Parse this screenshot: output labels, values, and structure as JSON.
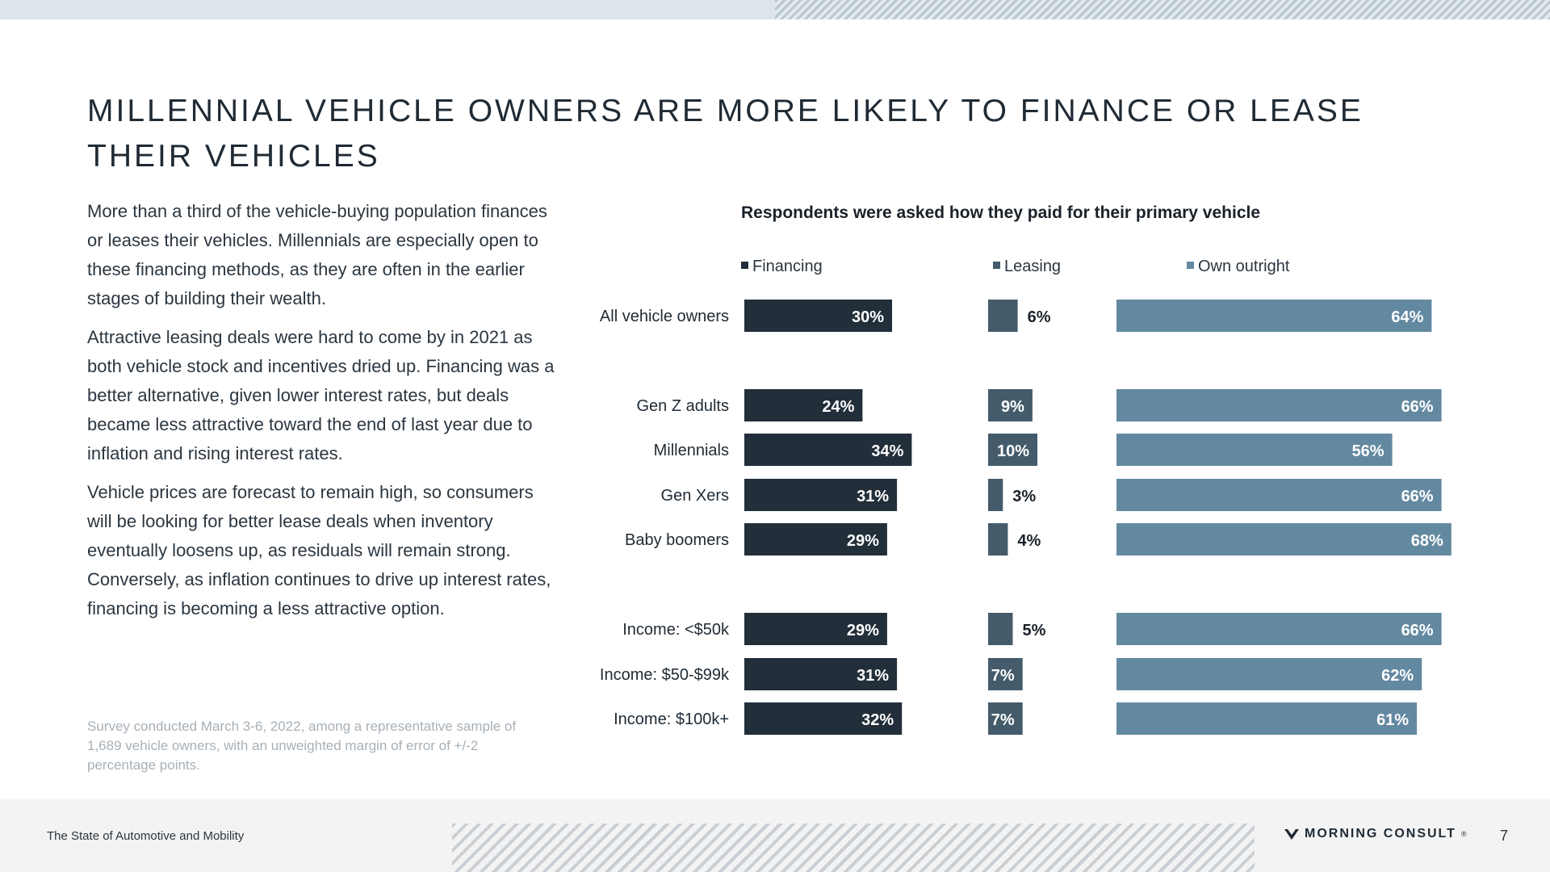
{
  "page": {
    "title": "MILLENNIAL VEHICLE OWNERS ARE MORE LIKELY TO FINANCE OR LEASE THEIR VEHICLES",
    "paragraphs": [
      "More than a third of the vehicle-buying population finances or leases their vehicles. Millennials are especially open to these financing methods, as they are often in the earlier stages of building their wealth.",
      "Attractive leasing deals were hard to come by in 2021 as both vehicle stock and incentives dried up. Financing was a better alternative, given lower interest rates, but deals became less attractive toward the end of last year due to inflation and rising interest rates.",
      "Vehicle prices are forecast to remain high, so consumers will be looking for better lease deals when inventory eventually loosens up, as residuals will remain strong. Conversely, as inflation continues to drive up interest rates, financing is becoming a less attractive option."
    ],
    "footnote": "Survey conducted March 3-6, 2022, among a representative sample of 1,689 vehicle owners, with an unweighted margin of error of +/-2 percentage points.",
    "footer_left": "The State of Automotive and Mobility",
    "brand": "MORNING CONSULT",
    "brand_mark": "®",
    "page_number": "7"
  },
  "colors": {
    "financing": "#222e39",
    "leasing": "#445b6b",
    "own_outright": "#6389a1",
    "label_light": "#ffffff",
    "label_dark": "#1a2129"
  },
  "chart_data": {
    "type": "bar",
    "orientation": "horizontal",
    "title": "Respondents were asked how they paid for their primary vehicle",
    "categories": [
      "All vehicle owners",
      "Gen Z adults",
      "Millennials",
      "Gen Xers",
      "Baby boomers",
      "Income: <$50k",
      "Income: $50-$99k",
      "Income: $100k+"
    ],
    "groups": [
      [
        "All vehicle owners"
      ],
      [
        "Gen Z adults",
        "Millennials",
        "Gen Xers",
        "Baby boomers"
      ],
      [
        "Income: <$50k",
        "Income: $50-$99k",
        "Income: $100k+"
      ]
    ],
    "series": [
      {
        "name": "Financing",
        "values": [
          30,
          24,
          34,
          31,
          29,
          29,
          31,
          32
        ],
        "labels": [
          "30%",
          "24%",
          "34%",
          "31%",
          "29%",
          "29%",
          "31%",
          "32%"
        ]
      },
      {
        "name": "Leasing",
        "values": [
          6,
          9,
          10,
          3,
          4,
          5,
          7,
          7
        ],
        "labels": [
          "6%",
          "9%",
          "10%",
          "3%",
          "4%",
          "5%",
          "7%",
          "7%"
        ]
      },
      {
        "name": "Own outright",
        "values": [
          64,
          66,
          56,
          66,
          68,
          66,
          62,
          61
        ],
        "labels": [
          "64%",
          "66%",
          "56%",
          "66%",
          "68%",
          "66%",
          "62%",
          "61%"
        ]
      }
    ],
    "unit": "%",
    "legend_position": "top"
  }
}
